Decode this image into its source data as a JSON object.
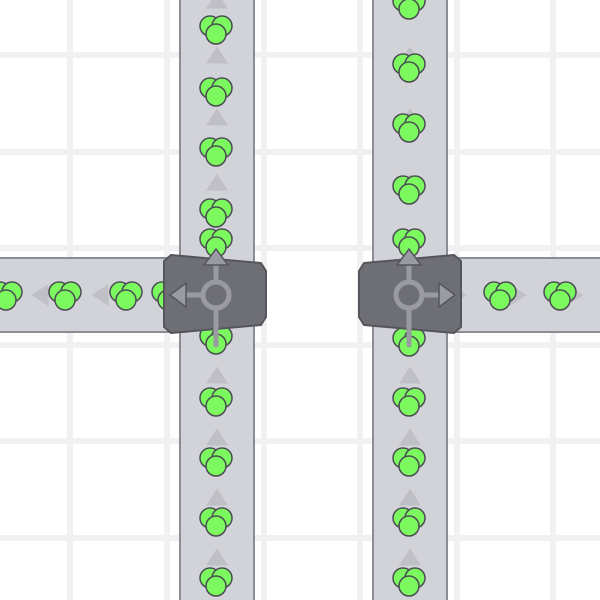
{
  "colors": {
    "background": "#ffffff",
    "grid": "#f1f1f3",
    "belt": "#d2d3d8",
    "belt_border": "#8b8d96",
    "belt_arrow": "#bfc0c6",
    "splitter": "#6e6f75",
    "splitter_border": "#55565c",
    "splitter_symbol": "#9a9ba2",
    "item_fill": "#7cf95f",
    "item_stroke": "#4a4d52"
  },
  "entities": {
    "belts": [
      "vertical-belt-left",
      "vertical-belt-right",
      "horizontal-belt-left",
      "horizontal-belt-right"
    ],
    "splitters": [
      {
        "name": "splitter-left",
        "outputs": [
          "up",
          "left"
        ]
      },
      {
        "name": "splitter-right",
        "outputs": [
          "up",
          "right"
        ]
      }
    ],
    "item_shape": "green-circle-cluster"
  }
}
